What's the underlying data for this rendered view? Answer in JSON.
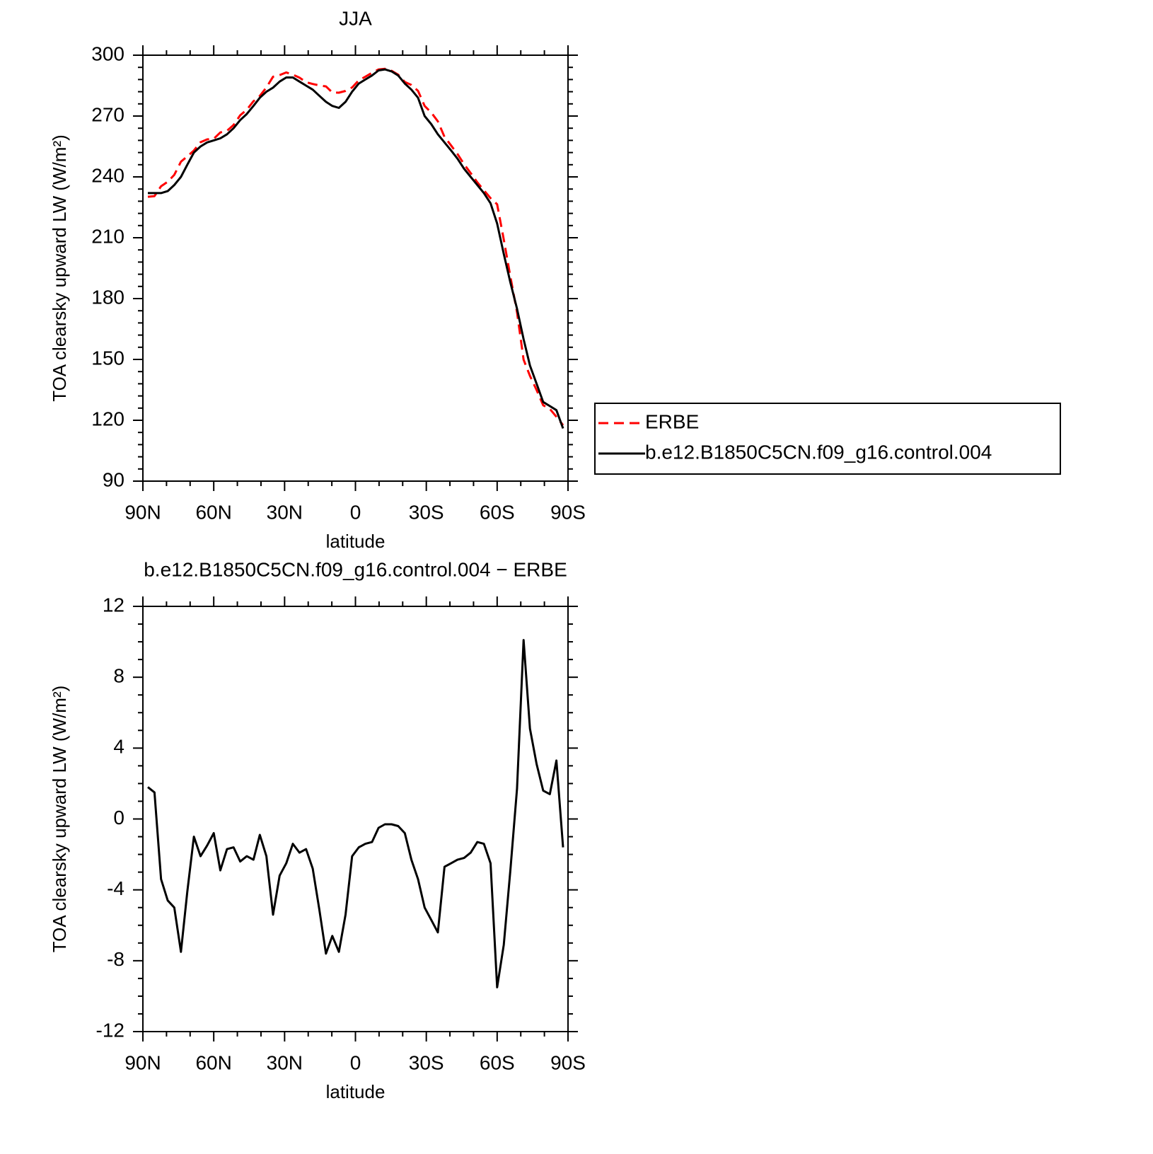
{
  "chart_data": [
    {
      "type": "line",
      "title": "JJA",
      "ylabel": "TOA clearsky upward LW (W/m²)",
      "xlabel": "latitude",
      "x": [
        87.9,
        85.1,
        82.3,
        79.5,
        76.7,
        73.9,
        71.2,
        68.4,
        65.6,
        62.8,
        60.0,
        57.2,
        54.4,
        51.6,
        48.8,
        46.0,
        43.2,
        40.5,
        37.7,
        34.9,
        32.1,
        29.3,
        26.5,
        23.7,
        20.9,
        18.1,
        15.3,
        12.5,
        9.8,
        7.0,
        4.2,
        1.4,
        -1.4,
        -4.2,
        -7.0,
        -9.8,
        -12.5,
        -15.3,
        -18.1,
        -20.9,
        -23.7,
        -26.5,
        -29.3,
        -32.1,
        -34.9,
        -37.7,
        -40.5,
        -43.2,
        -46.0,
        -48.8,
        -51.6,
        -54.4,
        -57.2,
        -60.0,
        -62.8,
        -65.6,
        -68.4,
        -71.2,
        -73.9,
        -76.7,
        -79.5,
        -82.3,
        -85.1,
        -87.9
      ],
      "series": [
        {
          "name": "ERBE",
          "color": "#ff0000",
          "dash": true,
          "values": [
            230.2,
            230.5,
            235.4,
            237.6,
            241.0,
            247.5,
            250.1,
            253.0,
            257.1,
            258.5,
            258.8,
            261.9,
            262.7,
            265.6,
            270.4,
            273.1,
            277.3,
            279.9,
            284.1,
            289.4,
            290.2,
            291.5,
            290.4,
            288.9,
            286.7,
            285.8,
            285.1,
            284.6,
            281.6,
            281.5,
            282.4,
            284.1,
            287.6,
            289.4,
            291.3,
            293.0,
            293.3,
            292.3,
            290.4,
            286.8,
            285.3,
            282.4,
            275.0,
            271.7,
            267.4,
            259.7,
            255.5,
            251.3,
            246.2,
            241.9,
            237.3,
            233.4,
            229.5,
            226.5,
            209.1,
            190.9,
            173.3,
            149.9,
            141.9,
            134.9,
            127.4,
            125.6,
            121.7,
            117.6
          ]
        },
        {
          "name": "b.e12.B1850C5CN.f09_g16.control.004",
          "color": "#000000",
          "dash": false,
          "values": [
            232,
            232,
            232,
            233,
            236,
            240,
            246,
            252,
            255,
            257,
            258,
            259,
            261,
            264,
            268,
            271,
            275,
            279,
            282,
            284,
            287,
            289,
            289,
            287,
            285,
            283,
            280,
            277,
            275,
            274,
            277,
            282,
            286,
            288,
            290,
            292.5,
            293,
            292,
            290,
            286,
            283,
            279,
            270,
            266,
            261,
            257,
            253,
            249,
            244,
            240,
            236,
            232,
            227,
            217,
            202,
            188,
            175,
            160,
            147,
            138,
            129,
            127,
            125,
            116
          ]
        }
      ],
      "xlim": [
        90,
        -90
      ],
      "xticks": [
        {
          "value": 90,
          "label": "90N"
        },
        {
          "value": 60,
          "label": "60N"
        },
        {
          "value": 30,
          "label": "30N"
        },
        0,
        {
          "value": -30,
          "label": "30S"
        },
        {
          "value": -60,
          "label": "60S"
        },
        {
          "value": -90,
          "label": "90S"
        }
      ],
      "ylim": [
        90,
        300
      ],
      "yticks": [
        90,
        120,
        150,
        180,
        210,
        240,
        270,
        300
      ],
      "legend": "right"
    },
    {
      "type": "line",
      "title": "b.e12.B1850C5CN.f09_g16.control.004 − ERBE",
      "ylabel": "TOA clearsky upward LW (W/m²)",
      "xlabel": "latitude",
      "x": [
        87.9,
        85.1,
        82.3,
        79.5,
        76.7,
        73.9,
        71.2,
        68.4,
        65.6,
        62.8,
        60.0,
        57.2,
        54.4,
        51.6,
        48.8,
        46.0,
        43.2,
        40.5,
        37.7,
        34.9,
        32.1,
        29.3,
        26.5,
        23.7,
        20.9,
        18.1,
        15.3,
        12.5,
        9.8,
        7.0,
        4.2,
        1.4,
        -1.4,
        -4.2,
        -7.0,
        -9.8,
        -12.5,
        -15.3,
        -18.1,
        -20.9,
        -23.7,
        -26.5,
        -29.3,
        -32.1,
        -34.9,
        -37.7,
        -40.5,
        -43.2,
        -46.0,
        -48.8,
        -51.6,
        -54.4,
        -57.2,
        -60.0,
        -62.8,
        -65.6,
        -68.4,
        -71.2,
        -73.9,
        -76.7,
        -79.5,
        -82.3,
        -85.1,
        -87.9
      ],
      "values": [
        1.8,
        1.5,
        -3.4,
        -4.6,
        -5.0,
        -7.5,
        -4.1,
        -1.0,
        -2.1,
        -1.5,
        -0.8,
        -2.9,
        -1.7,
        -1.6,
        -2.4,
        -2.1,
        -2.3,
        -0.9,
        -2.1,
        -5.4,
        -3.2,
        -2.5,
        -1.4,
        -1.9,
        -1.7,
        -2.8,
        -5.1,
        -7.6,
        -6.6,
        -7.5,
        -5.4,
        -2.1,
        -1.6,
        -1.4,
        -1.3,
        -0.5,
        -0.3,
        -0.3,
        -0.4,
        -0.8,
        -2.3,
        -3.4,
        -5.0,
        -5.7,
        -6.4,
        -2.7,
        -2.5,
        -2.3,
        -2.2,
        -1.9,
        -1.3,
        -1.4,
        -2.5,
        -9.5,
        -7.1,
        -2.9,
        1.7,
        10.1,
        5.1,
        3.1,
        1.6,
        1.4,
        3.3,
        -1.6
      ],
      "color": "#000000",
      "xlim": [
        90,
        -90
      ],
      "xticks": [
        {
          "value": 90,
          "label": "90N"
        },
        {
          "value": 60,
          "label": "60N"
        },
        {
          "value": 30,
          "label": "30N"
        },
        0,
        {
          "value": -30,
          "label": "30S"
        },
        {
          "value": -60,
          "label": "60S"
        },
        {
          "value": -90,
          "label": "90S"
        }
      ],
      "ylim": [
        -12,
        12
      ],
      "yticks": [
        -12,
        -8,
        -4,
        0,
        4,
        8,
        12
      ]
    }
  ]
}
